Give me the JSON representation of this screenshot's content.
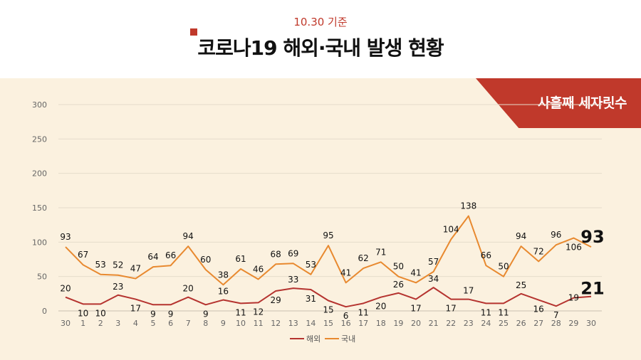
{
  "header": {
    "date_label": "10.30 기준",
    "title": "코로나19 해외·국내 발생 현황"
  },
  "source": "사흘째 세자릿수",
  "colors": {
    "overseas": "#b5332f",
    "domestic": "#e8892f",
    "accent": "#c0392b",
    "panel": "#fbf1df"
  },
  "chart_data": {
    "type": "line",
    "title": "코로나19 해외·국내 발생 현황",
    "categories": [
      "30",
      "1",
      "2",
      "3",
      "4",
      "5",
      "6",
      "7",
      "8",
      "9",
      "10",
      "11",
      "12",
      "13",
      "14",
      "15",
      "16",
      "17",
      "18",
      "19",
      "20",
      "21",
      "22",
      "23",
      "24",
      "25",
      "26",
      "27",
      "28",
      "29",
      "30"
    ],
    "series": [
      {
        "name": "해외",
        "values": [
          20,
          10,
          10,
          23,
          17,
          9,
          9,
          20,
          9,
          16,
          11,
          12,
          29,
          33,
          31,
          15,
          6,
          11,
          20,
          26,
          17,
          34,
          17,
          17,
          11,
          11,
          25,
          16,
          7,
          19,
          21
        ]
      },
      {
        "name": "국내",
        "values": [
          93,
          67,
          53,
          52,
          47,
          64,
          66,
          94,
          60,
          38,
          61,
          46,
          68,
          69,
          53,
          95,
          41,
          62,
          71,
          50,
          41,
          57,
          104,
          138,
          66,
          50,
          94,
          72,
          96,
          106,
          93
        ]
      }
    ],
    "y_ticks": [
      "0",
      "50",
      "100",
      "150",
      "200",
      "250",
      "300"
    ],
    "ylim": [
      0,
      300
    ],
    "grid": true,
    "legend_position": "bottom"
  }
}
